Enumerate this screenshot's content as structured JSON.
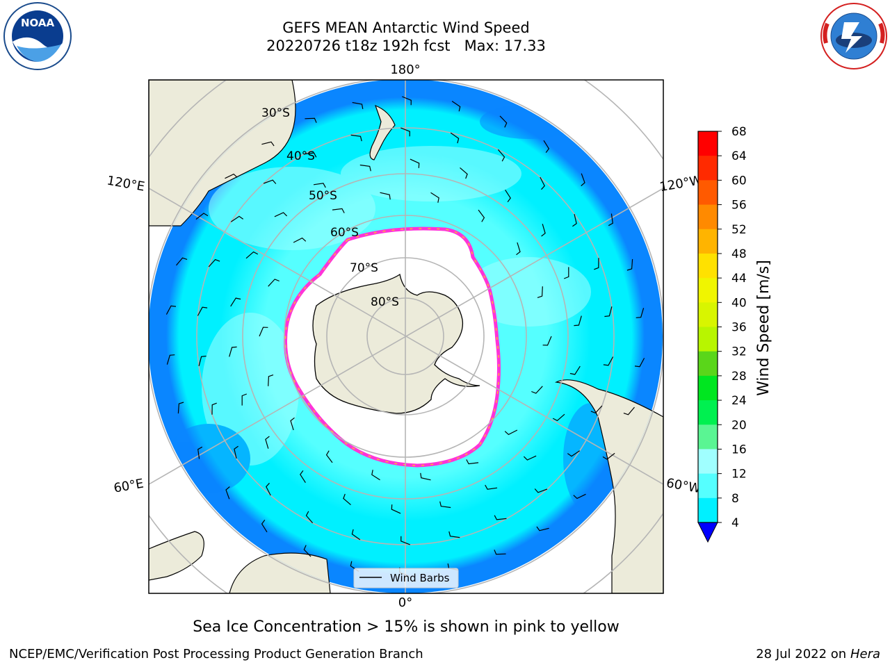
{
  "title": {
    "line1": "GEFS MEAN Antarctic Wind Speed",
    "line2_run": "20220726 t18z 192h fcst",
    "line2_max": "Max: 17.33"
  },
  "map": {
    "projection": "south-polar-stereographic",
    "lon_labels": [
      "180°",
      "120°E",
      "120°W",
      "60°E",
      "60°W",
      "0°"
    ],
    "lat_labels": [
      "30°S",
      "40°S",
      "50°S",
      "60°S",
      "70°S",
      "80°S"
    ],
    "legend_label": "Wind Barbs",
    "colors": {
      "land": "#ecebda",
      "ice": "#ffffff",
      "grid": "#b5b5b5",
      "ice_edge": "#ff33d8",
      "ice_edge2": "#ffb833"
    }
  },
  "colorbar": {
    "label": "Wind Speed [m/s]",
    "ticks": [
      "68",
      "64",
      "60",
      "56",
      "52",
      "48",
      "44",
      "40",
      "36",
      "32",
      "28",
      "24",
      "20",
      "16",
      "12",
      "8",
      "4"
    ],
    "colors": [
      "#ff0000",
      "#ff2a00",
      "#ff5a00",
      "#ff8a00",
      "#ffb400",
      "#ffe100",
      "#f0f500",
      "#d8f500",
      "#b8f500",
      "#5ad61a",
      "#00e620",
      "#00f050",
      "#5af593",
      "#a0ffff",
      "#55ffff",
      "#00f0ff",
      "#0080ff"
    ],
    "under_color": "#0000ff"
  },
  "note": "Sea Ice Concentration > 15% is shown in pink to yellow",
  "footer": {
    "left": "NCEP/EMC/Verification Post Processing Product Generation Branch",
    "right_date": "28 Jul 2022 on",
    "right_host": "Hera"
  },
  "logos": {
    "left": "NOAA",
    "right": "NATIONAL WEATHER SERVICE"
  }
}
